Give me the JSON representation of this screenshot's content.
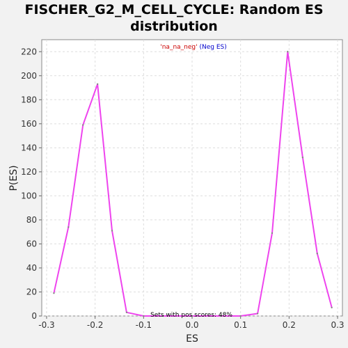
{
  "chart_data": {
    "type": "line",
    "title_line1": "FISCHER_G2_M_CELL_CYCLE: Random ES",
    "title_line2": "distribution",
    "xlabel": "ES",
    "ylabel": "P(ES)",
    "xlim": [
      -0.31,
      0.31
    ],
    "ylim": [
      0,
      230
    ],
    "xticks": [
      -0.3,
      -0.2,
      -0.1,
      0.0,
      0.1,
      0.2,
      0.3
    ],
    "xtick_labels": [
      "-0.3",
      "-0.2",
      "-0.1",
      "0.0",
      "0.1",
      "0.2",
      "0.3"
    ],
    "yticks": [
      0,
      20,
      40,
      60,
      80,
      100,
      120,
      140,
      160,
      180,
      200,
      220
    ],
    "ytick_labels": [
      "0",
      "20",
      "40",
      "60",
      "80",
      "100",
      "120",
      "140",
      "160",
      "180",
      "200",
      "220"
    ],
    "grid": true,
    "legend": {
      "name_part": "'na_na_neg'",
      "suffix_part": "(Neg ES)",
      "name_color": "#cc0000",
      "suffix_color": "#0000cc",
      "placement": "top-center"
    },
    "annotation": "Sets with pos scores: 48%",
    "series": [
      {
        "color": "#ee44ee",
        "x": [
          -0.285,
          -0.255,
          -0.225,
          -0.195,
          -0.165,
          -0.135,
          -0.1,
          -0.06,
          0.0,
          0.06,
          0.1,
          0.135,
          0.165,
          0.197,
          0.228,
          0.258,
          0.288
        ],
        "y": [
          19,
          74,
          159,
          193,
          71,
          3,
          0,
          0,
          0,
          0,
          0,
          2,
          69,
          220,
          132,
          52,
          7
        ]
      }
    ],
    "colors": {
      "plot_background": "#ffffff",
      "page_background": "#f2f2f2",
      "grid": "#dddddd"
    }
  }
}
